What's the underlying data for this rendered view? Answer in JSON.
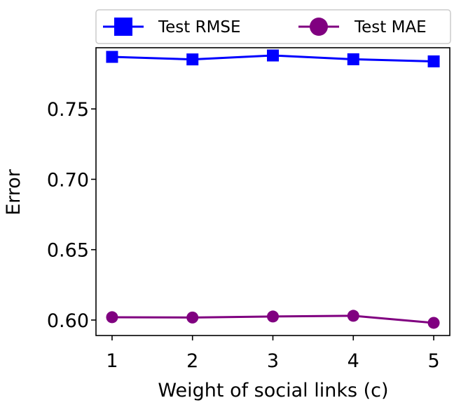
{
  "chart_data": {
    "type": "line",
    "title": "",
    "xlabel": "Weight of social links (c)",
    "ylabel": "Error",
    "x": [
      1,
      2,
      3,
      4,
      5
    ],
    "x_tick_labels": [
      "1",
      "2",
      "3",
      "4",
      "5"
    ],
    "xlim": [
      0.8,
      5.2
    ],
    "ylim": [
      0.589,
      0.7935
    ],
    "y_ticks": [
      0.6,
      0.65,
      0.7,
      0.75
    ],
    "y_tick_labels": [
      "0.60",
      "0.65",
      "0.70",
      "0.75"
    ],
    "grid": false,
    "legend_position": "top",
    "series": [
      {
        "name": "Test RMSE",
        "color": "#0000ff",
        "marker": "square",
        "values": [
          0.787,
          0.7852,
          0.788,
          0.7853,
          0.7838
        ]
      },
      {
        "name": "Test MAE",
        "color": "#800080",
        "marker": "circle",
        "values": [
          0.602,
          0.6018,
          0.6025,
          0.603,
          0.598
        ]
      }
    ]
  }
}
